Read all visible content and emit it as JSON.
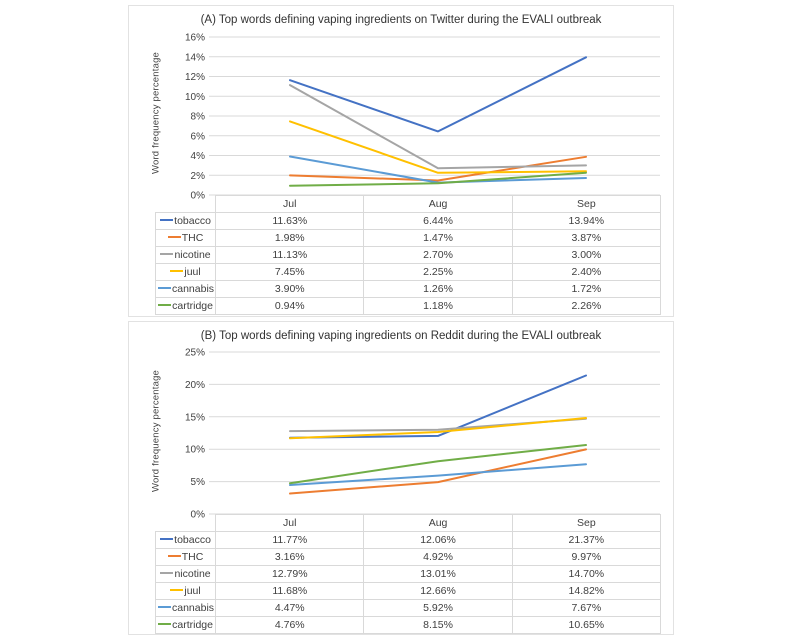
{
  "chart_data": [
    {
      "type": "line",
      "title": "(A) Top words defining vaping ingredients on Twitter during the EVALI outbreak",
      "ylabel": "Word frequency percentage",
      "categories": [
        "Jul",
        "Aug",
        "Sep"
      ],
      "ylim": [
        0,
        16
      ],
      "ytick_labels": [
        "16%",
        "14%",
        "12%",
        "10%",
        "8%",
        "6%",
        "4%",
        "2%",
        "0%"
      ],
      "grid": "horizontal",
      "legend_position": "table-left",
      "series": [
        {
          "name": "tobacco",
          "color": "#4472C4",
          "values": [
            11.63,
            6.44,
            13.94
          ],
          "display": [
            "11.63%",
            "6.44%",
            "13.94%"
          ]
        },
        {
          "name": "THC",
          "color": "#ED7D31",
          "values": [
            1.98,
            1.47,
            3.87
          ],
          "display": [
            "1.98%",
            "1.47%",
            "3.87%"
          ]
        },
        {
          "name": "nicotine",
          "color": "#A5A5A5",
          "values": [
            11.13,
            2.7,
            3.0
          ],
          "display": [
            "11.13%",
            "2.70%",
            "3.00%"
          ]
        },
        {
          "name": "juul",
          "color": "#FFC000",
          "values": [
            7.45,
            2.25,
            2.4
          ],
          "display": [
            "7.45%",
            "2.25%",
            "2.40%"
          ]
        },
        {
          "name": "cannabis",
          "color": "#5B9BD5",
          "values": [
            3.9,
            1.26,
            1.72
          ],
          "display": [
            "3.90%",
            "1.26%",
            "1.72%"
          ]
        },
        {
          "name": "cartridge",
          "color": "#70AD47",
          "values": [
            0.94,
            1.18,
            2.26
          ],
          "display": [
            "0.94%",
            "1.18%",
            "2.26%"
          ]
        }
      ]
    },
    {
      "type": "line",
      "title": "(B) Top words defining vaping ingredients on Reddit during the EVALI outbreak",
      "ylabel": "Word frequency percentage",
      "categories": [
        "Jul",
        "Aug",
        "Sep"
      ],
      "ylim": [
        0,
        25
      ],
      "ytick_labels": [
        "25%",
        "20%",
        "15%",
        "10%",
        "5%",
        "0%"
      ],
      "grid": "horizontal",
      "legend_position": "table-left",
      "series": [
        {
          "name": "tobacco",
          "color": "#4472C4",
          "values": [
            11.77,
            12.06,
            21.37
          ],
          "display": [
            "11.77%",
            "12.06%",
            "21.37%"
          ]
        },
        {
          "name": "THC",
          "color": "#ED7D31",
          "values": [
            3.16,
            4.92,
            9.97
          ],
          "display": [
            "3.16%",
            "4.92%",
            "9.97%"
          ]
        },
        {
          "name": "nicotine",
          "color": "#A5A5A5",
          "values": [
            12.79,
            13.01,
            14.7
          ],
          "display": [
            "12.79%",
            "13.01%",
            "14.70%"
          ]
        },
        {
          "name": "juul",
          "color": "#FFC000",
          "values": [
            11.68,
            12.66,
            14.82
          ],
          "display": [
            "11.68%",
            "12.66%",
            "14.82%"
          ]
        },
        {
          "name": "cannabis",
          "color": "#5B9BD5",
          "values": [
            4.47,
            5.92,
            7.67
          ],
          "display": [
            "4.47%",
            "5.92%",
            "7.67%"
          ]
        },
        {
          "name": "cartridge",
          "color": "#70AD47",
          "values": [
            4.76,
            8.15,
            10.65
          ],
          "display": [
            "4.76%",
            "8.15%",
            "10.65%"
          ]
        }
      ]
    }
  ],
  "style": {
    "gridline_color": "#d9d9d9",
    "axis_text_color": "#404040",
    "table_border_color": "#d9d9d9",
    "title_color": "#333333"
  }
}
